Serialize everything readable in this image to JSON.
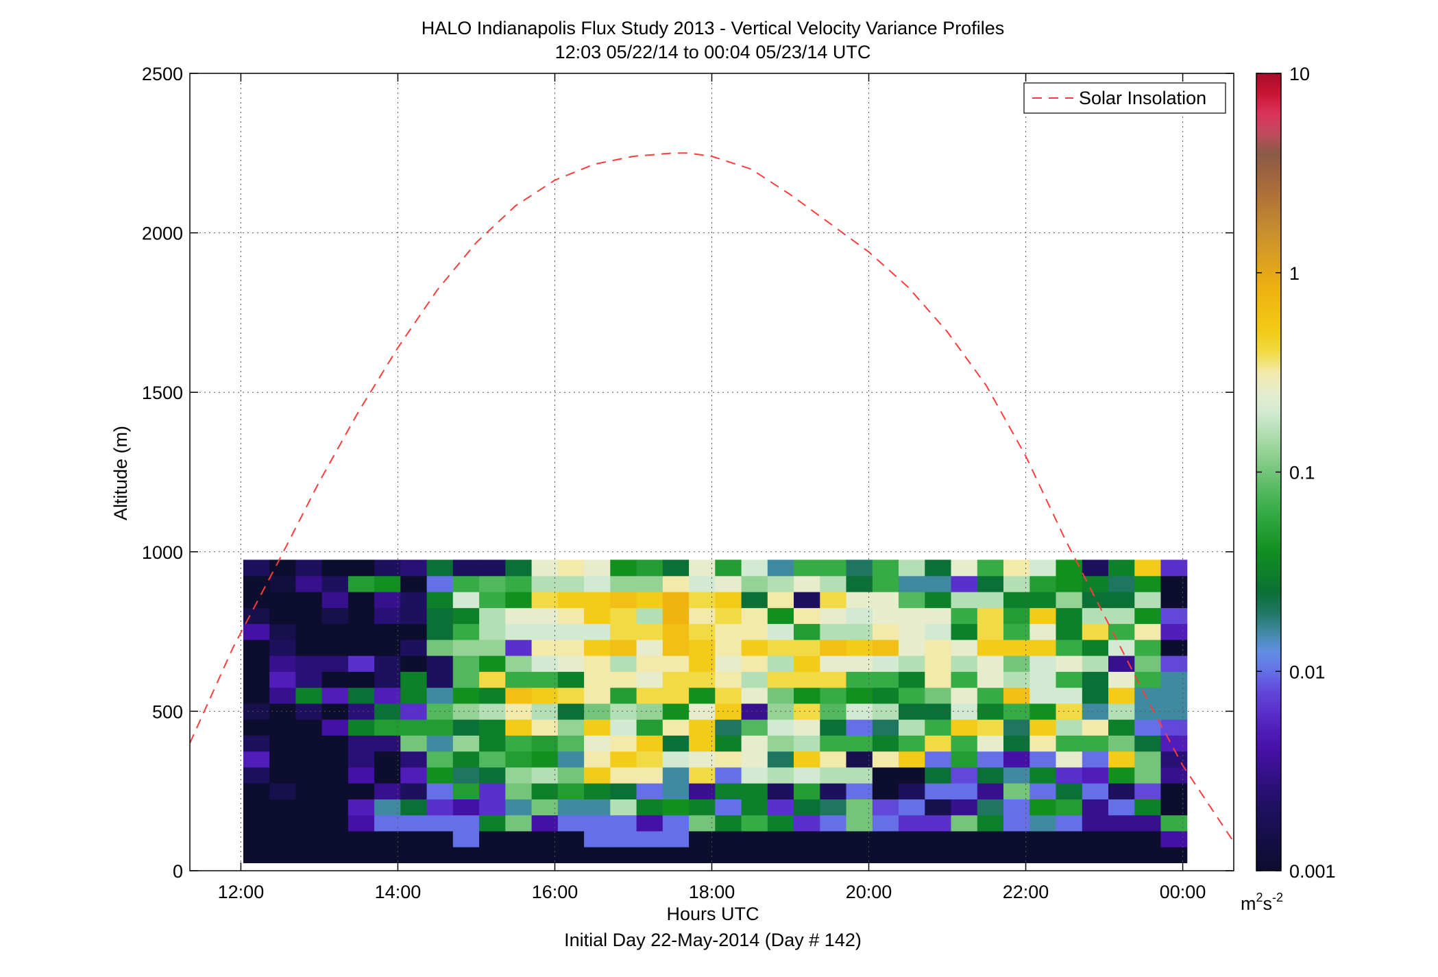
{
  "chart_data": {
    "type": "heatmap",
    "title": "HALO Indianapolis Flux Study 2013 - Vertical Velocity Variance Profiles",
    "subtitle": "12:03 05/22/14 to 00:04 05/23/14  UTC",
    "xlabel": "Hours UTC",
    "xlabel2": "Initial Day 22-May-2014 (Day # 142)",
    "ylabel": "Altitude (m)",
    "colorbar_label_base": "m",
    "colorbar_label_exp1": "2",
    "colorbar_label_mid": "s",
    "colorbar_label_exp2": "-2",
    "xlim": [
      11.35,
      24.65
    ],
    "ylim": [
      0,
      2500
    ],
    "x_ticks": [
      12,
      14,
      16,
      18,
      20,
      22,
      24
    ],
    "x_tick_labels": [
      "12:00",
      "14:00",
      "16:00",
      "18:00",
      "20:00",
      "22:00",
      "00:00"
    ],
    "y_ticks": [
      0,
      500,
      1000,
      1500,
      2000,
      2500
    ],
    "y_tick_labels": [
      "0",
      "500",
      "1000",
      "1500",
      "2000",
      "2500"
    ],
    "colorbar_scale": "log",
    "colorbar_range": [
      0.001,
      10
    ],
    "colorbar_ticks": [
      0.001,
      0.01,
      0.1,
      1,
      10
    ],
    "colorbar_tick_labels": [
      "0.001",
      "0.01",
      "0.1",
      "1",
      "10"
    ],
    "colormap": [
      [
        0.0,
        "#0d0d2e"
      ],
      [
        0.08,
        "#1e1060"
      ],
      [
        0.16,
        "#4a10b0"
      ],
      [
        0.22,
        "#6040d8"
      ],
      [
        0.27,
        "#6890f0"
      ],
      [
        0.3,
        "#3f8aa0"
      ],
      [
        0.34,
        "#0a6a3a"
      ],
      [
        0.4,
        "#118f1f"
      ],
      [
        0.46,
        "#3db04e"
      ],
      [
        0.52,
        "#8fd08f"
      ],
      [
        0.58,
        "#d8ecd8"
      ],
      [
        0.62,
        "#f3ecc0"
      ],
      [
        0.66,
        "#f2d41b"
      ],
      [
        0.73,
        "#f0b010"
      ],
      [
        0.8,
        "#c8902e"
      ],
      [
        0.86,
        "#a8693a"
      ],
      [
        0.9,
        "#8a5a48"
      ],
      [
        0.94,
        "#e0406a"
      ],
      [
        0.97,
        "#d01636"
      ],
      [
        1.0,
        "#a80c2a"
      ]
    ],
    "legend": {
      "label": "Solar Insolation",
      "placement": "top-right",
      "line_color": "#ff3c3c",
      "line_style": "dashed"
    },
    "solar_insolation": {
      "x": [
        11.35,
        11.9,
        12.5,
        13.0,
        13.5,
        14.0,
        14.5,
        15.0,
        15.5,
        16.0,
        16.5,
        17.0,
        17.5,
        17.7,
        18.0,
        18.5,
        19.0,
        19.5,
        20.0,
        20.5,
        21.0,
        21.5,
        22.0,
        22.5,
        23.0,
        23.5,
        24.0,
        24.65
      ],
      "y": [
        400,
        700,
        980,
        1220,
        1440,
        1640,
        1820,
        1970,
        2085,
        2165,
        2215,
        2240,
        2250,
        2250,
        2240,
        2200,
        2120,
        2030,
        1940,
        1830,
        1690,
        1520,
        1300,
        1040,
        800,
        560,
        330,
        90
      ]
    },
    "grid": true,
    "cells": {
      "time_start": 12.03,
      "time_step": 0.334,
      "alt_start": 50,
      "alt_step": 50,
      "value_log10": [
        [
          -3,
          -3,
          -3,
          -3,
          -3,
          -3,
          -3,
          -3,
          -3,
          -3,
          -3,
          -3,
          -3,
          -3,
          -3,
          -3,
          -3,
          -3,
          -3,
          -3,
          -3,
          -3,
          -3,
          -3,
          -3,
          -3,
          -3,
          -3,
          -3,
          -3,
          -3,
          -3,
          -3,
          -3,
          -3,
          -3
        ],
        [
          -3,
          -3,
          -3,
          -3,
          -3,
          -3,
          -3,
          -3,
          -2,
          -3,
          -3,
          -3,
          -3,
          -2,
          -2,
          -2,
          -2,
          -3,
          -3,
          -3,
          -3,
          -3,
          -3,
          -3,
          -3,
          -3,
          -3,
          -3,
          -3,
          -3,
          -3,
          -3,
          -3,
          -3,
          -3,
          -2.4
        ],
        [
          -3,
          -3,
          -3,
          -3,
          -2.4,
          -2,
          -2,
          -2,
          -2,
          -1.5,
          -1,
          -2.4,
          -2,
          -2,
          -2,
          -2.4,
          -2,
          -1,
          -1.5,
          -1.2,
          -1.5,
          -2.2,
          -2,
          -1,
          -2,
          -2.2,
          -2.2,
          -1,
          -1.5,
          -2,
          -1.8,
          -2,
          -2.5,
          -2.5,
          -2.5,
          -1.2
        ],
        [
          -3,
          -3,
          -3,
          -3,
          -2.3,
          -1.8,
          -1.6,
          -2.2,
          -2.4,
          -2.2,
          -1.8,
          -1,
          -1.8,
          -1.8,
          -0.8,
          -1.5,
          -1.4,
          -1.5,
          -2,
          -1.5,
          -2.2,
          -1.6,
          -1.7,
          -1,
          -2.1,
          -2,
          -2.8,
          -2.5,
          -1.7,
          -2,
          -1.4,
          -1.3,
          -2.5,
          -2,
          -1.5,
          -3
        ],
        [
          -3,
          -2.8,
          -3,
          -3,
          -3,
          -2.5,
          -2.7,
          -2,
          -1.3,
          -2.2,
          -1,
          -1.5,
          -1.3,
          -1.5,
          -1.6,
          -2,
          -1.8,
          -2.5,
          -1.5,
          -1.5,
          -2.7,
          -1.3,
          -2.7,
          -2,
          -3,
          -2.7,
          -2,
          -2,
          -2.5,
          -1,
          -2,
          -1.6,
          -2,
          -2.7,
          -2.1,
          -3
        ],
        [
          -2.7,
          -3,
          -3,
          -3,
          -2.4,
          -3,
          -2.3,
          -1.4,
          -1.7,
          -1.6,
          -0.9,
          -0.8,
          -1,
          -0.3,
          -0.5,
          -0.5,
          -1.8,
          -0.4,
          -2,
          -0.7,
          -0.8,
          -0.7,
          -0.8,
          -0.8,
          -3,
          -3,
          -1.6,
          -2.1,
          -1.6,
          -1.8,
          -1.5,
          -2.2,
          -2.3,
          -1.4,
          -1,
          -2.5
        ],
        [
          -2.3,
          -3,
          -3,
          -3,
          -2.6,
          -3,
          -2.6,
          -1.1,
          -1.5,
          -1.1,
          -1.3,
          -1.4,
          -1.8,
          -0.5,
          -0.3,
          -0.4,
          -0.7,
          -0.6,
          -0.5,
          -0.6,
          -1.7,
          -0.3,
          -0.5,
          -2.8,
          -0.5,
          -0.3,
          -2,
          -1.3,
          -2,
          -2.4,
          -2,
          -0.6,
          -2,
          -0.3,
          -1,
          -2.6
        ],
        [
          -2.7,
          -3,
          -3,
          -3,
          -2.6,
          -2.6,
          -1,
          -1.8,
          -0.9,
          -1.5,
          -1.2,
          -1.3,
          -1.1,
          -0.6,
          -0.5,
          -0.3,
          -1.6,
          -0.3,
          -1.5,
          -0.6,
          -0.9,
          -0.8,
          -1.2,
          -1.2,
          -1.5,
          -1.2,
          -0.4,
          -1.2,
          -0.6,
          -1.6,
          -0.5,
          -1.2,
          -1.2,
          -1,
          -1.6,
          -2.3
        ],
        [
          -3,
          -3,
          -3,
          -2.4,
          -1.5,
          -1.3,
          -1.3,
          -1.3,
          -1.6,
          -1.5,
          -0.3,
          -0.5,
          -0.9,
          -0.3,
          -0.7,
          -1.3,
          -0.5,
          -0.3,
          -1.7,
          -1.1,
          -0.7,
          -0.6,
          -1.6,
          -2,
          -1.7,
          -0.8,
          -1.2,
          -0.3,
          -0.4,
          -1.7,
          -0.3,
          -0.8,
          -0.5,
          -1.5,
          -2,
          -2.1
        ],
        [
          -2.8,
          -3,
          -2.7,
          -3,
          -2.6,
          -1.6,
          -2.2,
          -1.1,
          -0.9,
          -0.8,
          -0.5,
          -0.8,
          -1.6,
          -1,
          -0.8,
          -0.9,
          -1.4,
          -0.6,
          -0.3,
          -2.5,
          -0.9,
          -0.4,
          -1.1,
          -0.7,
          -0.8,
          -1.6,
          -1.6,
          -0.7,
          -1.5,
          -1.2,
          -1.4,
          -0.4,
          -1.8,
          -0.8,
          -1.8,
          -1.8
        ],
        [
          -3,
          -2.5,
          -1.5,
          -2.3,
          -1.6,
          -2.3,
          -1.5,
          -1.8,
          -1.4,
          -1.5,
          -0.2,
          -0.3,
          -0.4,
          -0.5,
          -1.3,
          -0.4,
          -0.4,
          -1.4,
          -0.4,
          -0.6,
          -1,
          -1.4,
          -1.2,
          -1.4,
          -1.5,
          -1.2,
          -1,
          -0.6,
          -1.2,
          -0.2,
          -0.7,
          -0.7,
          -1.6,
          -0.3,
          -1.8,
          -1.8
        ],
        [
          -3,
          -2.3,
          -2.6,
          -3,
          -3,
          -2.7,
          -1.5,
          -2.7,
          -1.1,
          -0.4,
          -1.2,
          -1.2,
          -1.5,
          -0.5,
          -0.5,
          -0.6,
          -0.4,
          -0.4,
          -0.5,
          -0.8,
          -0.4,
          -0.4,
          -0.4,
          -1.2,
          -1.2,
          -1.5,
          -0.5,
          -1.2,
          -0.6,
          -0.8,
          -0.7,
          -1.2,
          -1.6,
          -0.6,
          -1.2,
          -1.8
        ],
        [
          -3,
          -2.5,
          -2.6,
          -2.6,
          -2.2,
          -2.7,
          -3,
          -2.7,
          -1.1,
          -1.4,
          -0.9,
          -0.7,
          -0.6,
          -0.5,
          -0.8,
          -0.5,
          -0.5,
          -0.3,
          -0.6,
          -0.5,
          -0.8,
          -0.3,
          -0.6,
          -0.6,
          -0.7,
          -0.8,
          -0.5,
          -0.8,
          -0.6,
          -1,
          -0.7,
          -0.6,
          -0.8,
          -2.5,
          -1,
          -2.1
        ],
        [
          -3,
          -2.7,
          -3,
          -3,
          -3,
          -3,
          -2.7,
          -1,
          -0.9,
          -0.9,
          -2.2,
          -0.5,
          -0.5,
          -0.3,
          -0.2,
          -0.6,
          -0.2,
          -0.3,
          -0.5,
          -0.3,
          -0.4,
          -0.4,
          -0.2,
          -0.3,
          -0.2,
          -0.6,
          -0.5,
          -0.6,
          -0.3,
          -0.3,
          -0.3,
          -1.2,
          -1.5,
          -0.7,
          -1.2,
          -3
        ],
        [
          -2.4,
          -2.8,
          -3,
          -3,
          -3,
          -3,
          -3,
          -1.6,
          -1.2,
          -0.8,
          -0.7,
          -0.7,
          -0.7,
          -0.7,
          -0.4,
          -0.4,
          -0.2,
          -0.4,
          -0.5,
          -0.5,
          -0.7,
          -1.3,
          -0.8,
          -0.8,
          -0.5,
          -0.6,
          -0.7,
          -1.5,
          -0.4,
          -1.2,
          -0.6,
          -1.5,
          -0.4,
          -1.2,
          -0.5,
          -2.3
        ],
        [
          -2.8,
          -3,
          -3,
          -2.8,
          -3,
          -2.6,
          -2.7,
          -1.6,
          -1.5,
          -0.8,
          -0.6,
          -0.6,
          -0.5,
          -0.3,
          -0.4,
          -0.8,
          -0.1,
          -0.5,
          -0.4,
          -0.5,
          -1.4,
          -0.5,
          -0.6,
          -0.7,
          -0.6,
          -0.6,
          -0.6,
          -1.2,
          -0.4,
          -1.3,
          -0.3,
          -1.5,
          -0.8,
          -0.8,
          -1.4,
          -2.1
        ],
        [
          -3,
          -3,
          -3,
          -2.5,
          -3,
          -2.5,
          -2.7,
          -1.5,
          -0.7,
          -1.2,
          -1.4,
          -0.4,
          -0.3,
          -0.3,
          -0.2,
          -0.3,
          -0.1,
          -0.4,
          -0.3,
          -1.6,
          -0.5,
          -2.7,
          -0.4,
          -0.6,
          -0.6,
          -1.1,
          -1.5,
          -0.8,
          -0.8,
          -1.5,
          -1.5,
          -0.9,
          -1.6,
          -1.6,
          -0.8,
          -3
        ],
        [
          -3,
          -2.9,
          -2.5,
          -2.7,
          -1.3,
          -1.4,
          -3,
          -2,
          -1.2,
          -1.1,
          -1.2,
          -0.8,
          -0.8,
          -0.7,
          -0.9,
          -0.9,
          -0.5,
          -0.7,
          -0.6,
          -0.9,
          -0.8,
          -0.6,
          -0.8,
          -1.6,
          -1.2,
          -1.8,
          -1.8,
          -2.2,
          -1.6,
          -0.8,
          -1.3,
          -1.4,
          -1.5,
          -1.7,
          -1.4,
          -3
        ],
        [
          -2.7,
          -3,
          -2.7,
          -3,
          -3,
          -2.7,
          -2.6,
          -1.6,
          -2.7,
          -2.7,
          -1.6,
          -0.6,
          -0.5,
          -0.6,
          -1.4,
          -1.3,
          -1.6,
          -0.6,
          -1.3,
          -0.7,
          -1.8,
          -1.2,
          -1.2,
          -1.7,
          -1.2,
          -0.8,
          -1.6,
          -0.6,
          -1.2,
          -0.5,
          -0.7,
          -1.4,
          -2.7,
          -1.5,
          -0.3,
          -2.2
        ]
      ]
    }
  }
}
